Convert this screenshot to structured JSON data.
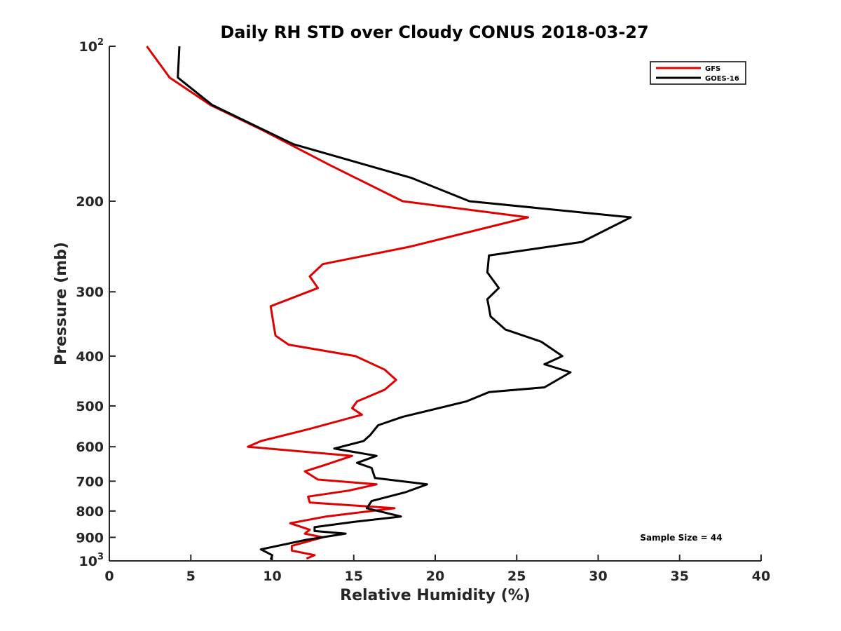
{
  "chart_data": {
    "type": "line",
    "title": "Daily RH STD over Cloudy CONUS 2018-03-27",
    "xlabel": "Relative Humidity (%)",
    "ylabel": "Pressure (mb)",
    "xlim": [
      0,
      40
    ],
    "ylim": [
      100,
      1000
    ],
    "y_scale": "log",
    "y_reversed": true,
    "grid": false,
    "legend_placement": "top-right",
    "x_ticks": [
      0,
      5,
      10,
      15,
      20,
      25,
      30,
      35,
      40
    ],
    "y_ticks": [
      {
        "value": 100,
        "base": "10",
        "exp": "2"
      },
      {
        "value": 200,
        "label": "200"
      },
      {
        "value": 300,
        "label": "300"
      },
      {
        "value": 400,
        "label": "400"
      },
      {
        "value": 500,
        "label": "500"
      },
      {
        "value": 600,
        "label": "600"
      },
      {
        "value": 700,
        "label": "700"
      },
      {
        "value": 800,
        "label": "800"
      },
      {
        "value": 900,
        "label": "900"
      },
      {
        "value": 1000,
        "base": "10",
        "exp": "3"
      }
    ],
    "annotation": "Sample Size = 44",
    "series": [
      {
        "name": "GFS",
        "color": "#e00000",
        "x": [
          2.3,
          3.7,
          6.2,
          9.3,
          13.5,
          18.0,
          25.7,
          18.5,
          13.1,
          12.3,
          12.8,
          9.9,
          10.1,
          10.2,
          11.0,
          15.1,
          16.9,
          17.6,
          16.9,
          15.2,
          14.9,
          15.5,
          12.2,
          9.3,
          8.5,
          14.9,
          13.3,
          12.0,
          12.8,
          16.4,
          14.7,
          12.2,
          12.3,
          17.5,
          13.3,
          11.1,
          12.3,
          12.0,
          13.1,
          11.2,
          11.2,
          12.6,
          12.1
        ],
        "y": [
          100,
          115,
          130,
          145,
          170,
          200,
          215,
          245,
          265,
          280,
          295,
          320,
          350,
          365,
          380,
          400,
          425,
          445,
          465,
          490,
          505,
          520,
          555,
          585,
          600,
          625,
          650,
          670,
          695,
          710,
          730,
          750,
          770,
          790,
          820,
          845,
          870,
          885,
          900,
          935,
          955,
          975,
          990
        ]
      },
      {
        "name": "GOES-16",
        "color": "#000000",
        "x": [
          4.3,
          4.2,
          6.3,
          11.3,
          18.5,
          22.1,
          32.0,
          29.0,
          23.3,
          23.2,
          23.9,
          23.2,
          23.4,
          24.3,
          26.5,
          27.8,
          26.7,
          28.3,
          26.7,
          23.3,
          21.9,
          18.0,
          16.5,
          16.0,
          15.6,
          13.8,
          16.4,
          15.2,
          16.1,
          16.3,
          19.5,
          18.2,
          16.1,
          15.8,
          17.9,
          15.0,
          12.6,
          12.6,
          14.5,
          12.1,
          9.3,
          10.0,
          9.9
        ],
        "y": [
          100,
          115,
          130,
          155,
          180,
          200,
          215,
          240,
          255,
          275,
          295,
          310,
          335,
          355,
          375,
          400,
          415,
          430,
          460,
          470,
          490,
          525,
          545,
          570,
          585,
          605,
          625,
          645,
          660,
          690,
          710,
          735,
          765,
          790,
          820,
          840,
          860,
          875,
          885,
          910,
          950,
          975,
          995
        ]
      }
    ]
  }
}
